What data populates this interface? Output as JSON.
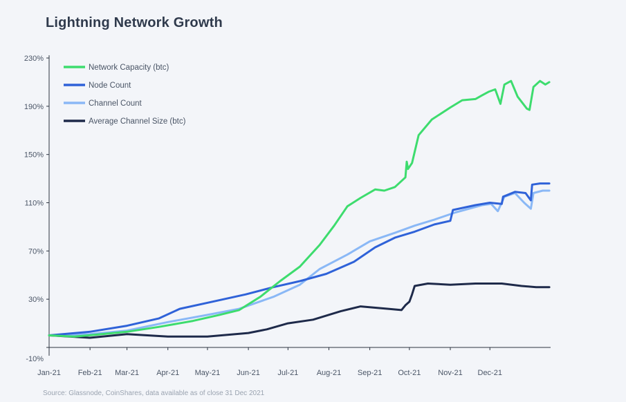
{
  "chart_data": {
    "type": "line",
    "title": "Lightning Network Growth",
    "source": "Source: Glassnode, CoinShares, data available as of close 31 Dec 2021",
    "xlabel": "",
    "ylabel": "",
    "x_tick_labels": [
      "Jan-21",
      "Feb-21",
      "Mar-21",
      "Apr-21",
      "May-21",
      "Jun-21",
      "Jul-21",
      "Aug-21",
      "Sep-21",
      "Oct-21",
      "Nov-21",
      "Dec-21"
    ],
    "y_tick_labels": [
      "-10%",
      "30%",
      "70%",
      "110%",
      "150%",
      "190%",
      "230%"
    ],
    "ylim": [
      -10,
      230
    ],
    "xlim": [
      "2021-01-01",
      "2021-12-31"
    ],
    "grid": false,
    "legend_position": "top-left",
    "series": [
      {
        "name": "Network Capacity (btc)",
        "color": "#3ddc6e",
        "points": [
          [
            "2021-01-01",
            0
          ],
          [
            "2021-01-20",
            -1
          ],
          [
            "2021-02-10",
            1
          ],
          [
            "2021-03-01",
            3
          ],
          [
            "2021-03-25",
            7
          ],
          [
            "2021-04-20",
            12
          ],
          [
            "2021-05-10",
            17
          ],
          [
            "2021-05-25",
            21
          ],
          [
            "2021-06-10",
            32
          ],
          [
            "2021-06-25",
            45
          ],
          [
            "2021-07-10",
            57
          ],
          [
            "2021-07-25",
            75
          ],
          [
            "2021-08-05",
            91
          ],
          [
            "2021-08-15",
            107
          ],
          [
            "2021-08-25",
            114
          ],
          [
            "2021-09-05",
            121
          ],
          [
            "2021-09-12",
            120
          ],
          [
            "2021-09-20",
            123
          ],
          [
            "2021-09-28",
            131
          ],
          [
            "2021-09-29",
            144
          ],
          [
            "2021-09-30",
            138
          ],
          [
            "2021-10-03",
            143
          ],
          [
            "2021-10-08",
            166
          ],
          [
            "2021-10-18",
            179
          ],
          [
            "2021-11-01",
            189
          ],
          [
            "2021-11-10",
            195
          ],
          [
            "2021-11-20",
            196
          ],
          [
            "2021-11-25",
            199
          ],
          [
            "2021-11-30",
            202
          ],
          [
            "2021-12-05",
            204
          ],
          [
            "2021-12-09",
            192
          ],
          [
            "2021-12-12",
            208
          ],
          [
            "2021-12-17",
            211
          ],
          [
            "2021-12-22",
            198
          ],
          [
            "2021-12-29",
            188
          ],
          [
            "2021-12-31",
            187
          ],
          [
            "2022-01-03",
            206
          ],
          [
            "2022-01-08",
            211
          ],
          [
            "2022-01-12",
            208
          ],
          [
            "2022-01-15",
            210
          ]
        ]
      },
      {
        "name": "Node Count",
        "color": "#2f62d8",
        "points": [
          [
            "2021-01-01",
            0
          ],
          [
            "2021-02-01",
            3
          ],
          [
            "2021-03-01",
            8
          ],
          [
            "2021-03-25",
            14
          ],
          [
            "2021-04-10",
            22
          ],
          [
            "2021-05-05",
            28
          ],
          [
            "2021-05-30",
            34
          ],
          [
            "2021-06-20",
            40
          ],
          [
            "2021-07-10",
            45
          ],
          [
            "2021-07-30",
            51
          ],
          [
            "2021-08-20",
            61
          ],
          [
            "2021-09-05",
            73
          ],
          [
            "2021-09-20",
            81
          ],
          [
            "2021-10-05",
            86
          ],
          [
            "2021-10-20",
            92
          ],
          [
            "2021-11-01",
            95
          ],
          [
            "2021-11-03",
            104
          ],
          [
            "2021-11-20",
            108
          ],
          [
            "2021-12-01",
            110
          ],
          [
            "2021-12-10",
            109
          ],
          [
            "2021-12-11",
            115
          ],
          [
            "2021-12-20",
            119
          ],
          [
            "2021-12-28",
            118
          ],
          [
            "2022-01-01",
            112
          ],
          [
            "2022-01-02",
            125
          ],
          [
            "2022-01-08",
            126
          ],
          [
            "2022-01-15",
            126
          ]
        ]
      },
      {
        "name": "Channel Count",
        "color": "#8ab8f6",
        "points": [
          [
            "2021-01-01",
            0
          ],
          [
            "2021-02-01",
            1
          ],
          [
            "2021-03-01",
            4
          ],
          [
            "2021-04-01",
            11
          ],
          [
            "2021-05-01",
            17
          ],
          [
            "2021-05-25",
            22
          ],
          [
            "2021-06-20",
            32
          ],
          [
            "2021-07-10",
            42
          ],
          [
            "2021-07-25",
            55
          ],
          [
            "2021-08-15",
            67
          ],
          [
            "2021-09-01",
            78
          ],
          [
            "2021-09-20",
            85
          ],
          [
            "2021-10-05",
            91
          ],
          [
            "2021-10-20",
            96
          ],
          [
            "2021-11-05",
            102
          ],
          [
            "2021-11-25",
            108
          ],
          [
            "2021-12-02",
            109
          ],
          [
            "2021-12-07",
            103
          ],
          [
            "2021-12-12",
            115
          ],
          [
            "2021-12-20",
            118
          ],
          [
            "2021-12-27",
            110
          ],
          [
            "2022-01-01",
            105
          ],
          [
            "2022-01-03",
            118
          ],
          [
            "2022-01-10",
            120
          ],
          [
            "2022-01-15",
            120
          ]
        ]
      },
      {
        "name": "Average Channel Size (btc)",
        "color": "#1e2a4a",
        "points": [
          [
            "2021-01-01",
            0
          ],
          [
            "2021-02-01",
            -2
          ],
          [
            "2021-03-01",
            1
          ],
          [
            "2021-04-01",
            -1
          ],
          [
            "2021-05-01",
            -1
          ],
          [
            "2021-06-01",
            2
          ],
          [
            "2021-06-15",
            5
          ],
          [
            "2021-07-01",
            10
          ],
          [
            "2021-07-20",
            13
          ],
          [
            "2021-08-10",
            20
          ],
          [
            "2021-08-25",
            24
          ],
          [
            "2021-09-15",
            22
          ],
          [
            "2021-09-25",
            21
          ],
          [
            "2021-09-28",
            25
          ],
          [
            "2021-10-01",
            28
          ],
          [
            "2021-10-03",
            34
          ],
          [
            "2021-10-05",
            41
          ],
          [
            "2021-10-15",
            43
          ],
          [
            "2021-11-01",
            42
          ],
          [
            "2021-11-20",
            43
          ],
          [
            "2021-12-10",
            43
          ],
          [
            "2021-12-25",
            41
          ],
          [
            "2022-01-05",
            40
          ],
          [
            "2022-01-15",
            40
          ]
        ]
      }
    ]
  }
}
